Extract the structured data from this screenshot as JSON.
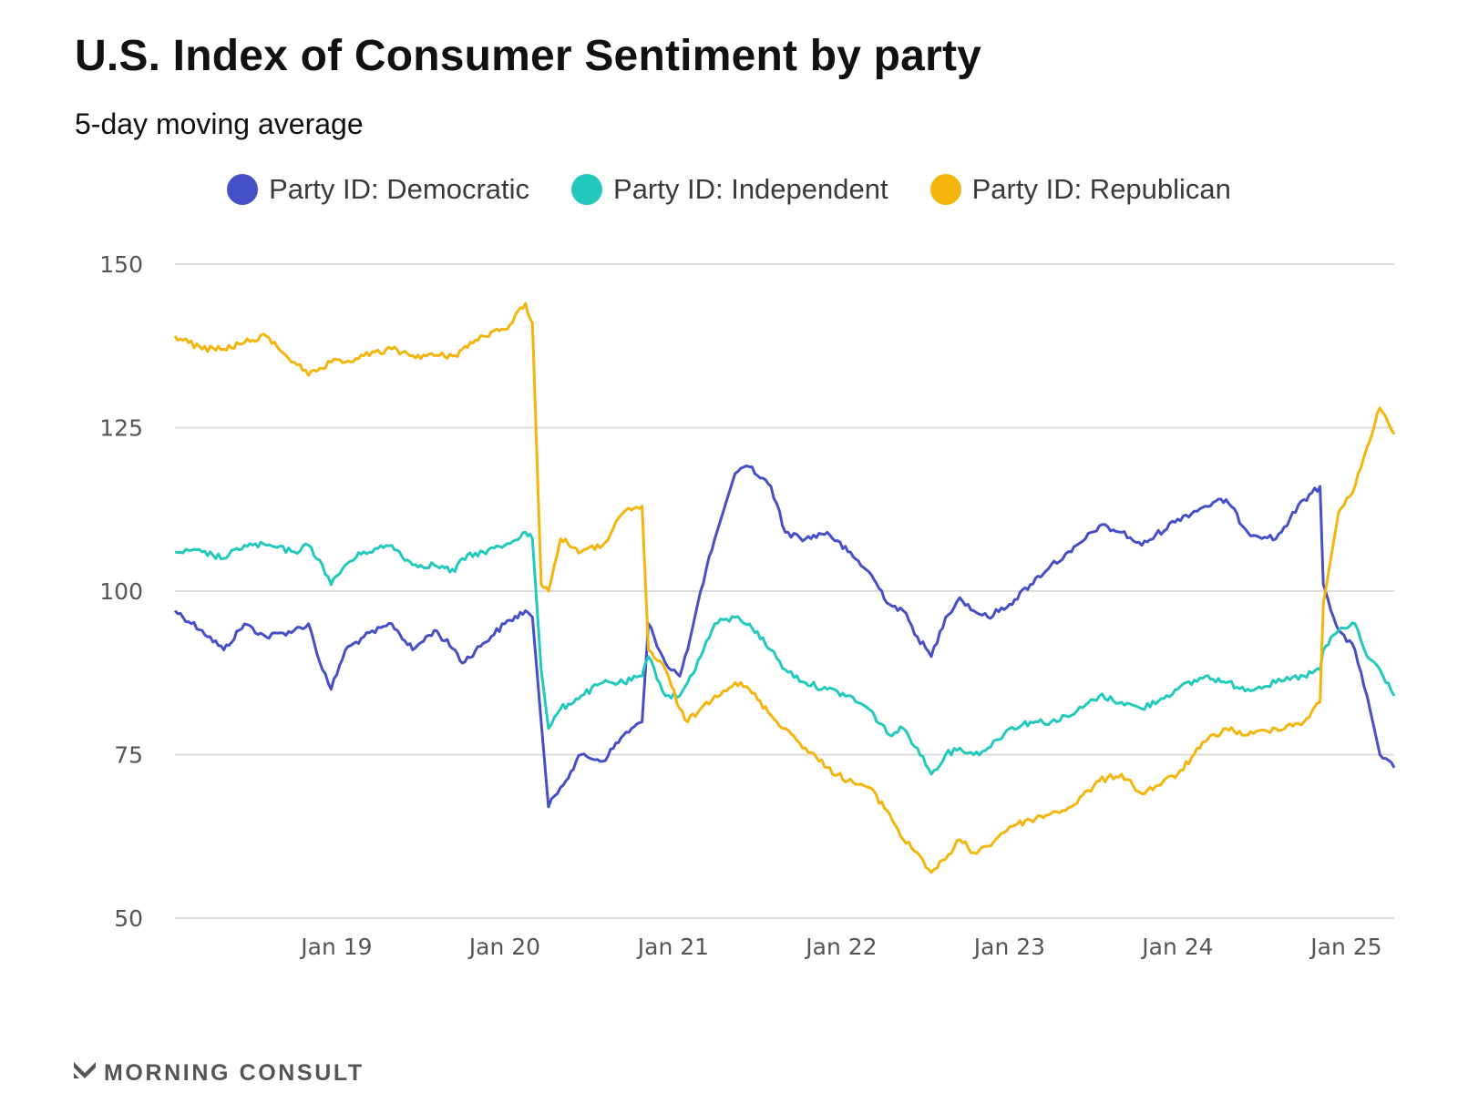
{
  "chart_data": {
    "type": "line",
    "title": "U.S. Index of Consumer Sentiment by party",
    "subtitle": "5-day moving average",
    "ylim": [
      50,
      150
    ],
    "yticks": [
      50,
      75,
      100,
      125,
      150
    ],
    "xlim": [
      "2018-01-15",
      "2025-04-15"
    ],
    "xticks": [
      {
        "date": "2019-01-01",
        "label": "Jan 19"
      },
      {
        "date": "2020-01-01",
        "label": "Jan 20"
      },
      {
        "date": "2021-01-01",
        "label": "Jan 21"
      },
      {
        "date": "2022-01-01",
        "label": "Jan 22"
      },
      {
        "date": "2023-01-01",
        "label": "Jan 23"
      },
      {
        "date": "2024-01-01",
        "label": "Jan 24"
      },
      {
        "date": "2025-01-01",
        "label": "Jan 25"
      }
    ],
    "grid": true,
    "legend_position": "top-center",
    "series": [
      {
        "name": "Party ID: Democratic",
        "color": "#4650c6",
        "points": [
          [
            "2018-01-15",
            97
          ],
          [
            "2018-03-15",
            94
          ],
          [
            "2018-05-01",
            91
          ],
          [
            "2018-06-15",
            95
          ],
          [
            "2018-08-01",
            93
          ],
          [
            "2018-10-01",
            94
          ],
          [
            "2018-11-01",
            95
          ],
          [
            "2018-12-01",
            88
          ],
          [
            "2018-12-20",
            85
          ],
          [
            "2019-01-20",
            91
          ],
          [
            "2019-03-01",
            93
          ],
          [
            "2019-05-01",
            95
          ],
          [
            "2019-06-15",
            91
          ],
          [
            "2019-08-01",
            94
          ],
          [
            "2019-09-15",
            91
          ],
          [
            "2019-10-01",
            89
          ],
          [
            "2019-11-15",
            92
          ],
          [
            "2020-01-01",
            95
          ],
          [
            "2020-02-15",
            97
          ],
          [
            "2020-03-01",
            96
          ],
          [
            "2020-03-20",
            80
          ],
          [
            "2020-04-05",
            67
          ],
          [
            "2020-05-01",
            70
          ],
          [
            "2020-06-15",
            75
          ],
          [
            "2020-08-01",
            74
          ],
          [
            "2020-09-15",
            78
          ],
          [
            "2020-10-25",
            80
          ],
          [
            "2020-11-08",
            95
          ],
          [
            "2020-12-15",
            89
          ],
          [
            "2021-01-15",
            87
          ],
          [
            "2021-02-01",
            91
          ],
          [
            "2021-03-01",
            100
          ],
          [
            "2021-04-01",
            108
          ],
          [
            "2021-05-15",
            118
          ],
          [
            "2021-06-15",
            119
          ],
          [
            "2021-08-01",
            116
          ],
          [
            "2021-09-01",
            109
          ],
          [
            "2021-10-15",
            108
          ],
          [
            "2021-12-01",
            109
          ],
          [
            "2022-01-15",
            106
          ],
          [
            "2022-03-01",
            103
          ],
          [
            "2022-04-15",
            98
          ],
          [
            "2022-05-15",
            97
          ],
          [
            "2022-06-15",
            93
          ],
          [
            "2022-07-15",
            90
          ],
          [
            "2022-08-15",
            96
          ],
          [
            "2022-09-15",
            99
          ],
          [
            "2022-10-15",
            97
          ],
          [
            "2022-11-15",
            96
          ],
          [
            "2023-01-01",
            98
          ],
          [
            "2023-02-15",
            101
          ],
          [
            "2023-04-01",
            104
          ],
          [
            "2023-05-15",
            106
          ],
          [
            "2023-07-15",
            110
          ],
          [
            "2023-09-01",
            109
          ],
          [
            "2023-10-15",
            107
          ],
          [
            "2024-01-01",
            111
          ],
          [
            "2024-03-01",
            113
          ],
          [
            "2024-04-15",
            114
          ],
          [
            "2024-06-01",
            109
          ],
          [
            "2024-08-01",
            108
          ],
          [
            "2024-10-01",
            114
          ],
          [
            "2024-11-05",
            116
          ],
          [
            "2024-11-12",
            101
          ],
          [
            "2024-12-15",
            94
          ],
          [
            "2025-01-20",
            91
          ],
          [
            "2025-02-15",
            84
          ],
          [
            "2025-03-15",
            75
          ],
          [
            "2025-04-15",
            73
          ]
        ]
      },
      {
        "name": "Party ID: Independent",
        "color": "#22c9bc",
        "points": [
          [
            "2018-01-15",
            106
          ],
          [
            "2018-03-15",
            106
          ],
          [
            "2018-05-01",
            105
          ],
          [
            "2018-06-15",
            107
          ],
          [
            "2018-08-01",
            107
          ],
          [
            "2018-10-01",
            106
          ],
          [
            "2018-11-01",
            107
          ],
          [
            "2018-12-01",
            104
          ],
          [
            "2018-12-20",
            101
          ],
          [
            "2019-01-20",
            104
          ],
          [
            "2019-03-01",
            106
          ],
          [
            "2019-05-01",
            107
          ],
          [
            "2019-06-15",
            104
          ],
          [
            "2019-08-01",
            104
          ],
          [
            "2019-09-15",
            103
          ],
          [
            "2019-10-01",
            105
          ],
          [
            "2019-11-15",
            106
          ],
          [
            "2020-01-01",
            107
          ],
          [
            "2020-02-15",
            109
          ],
          [
            "2020-03-01",
            108
          ],
          [
            "2020-03-20",
            88
          ],
          [
            "2020-04-05",
            79
          ],
          [
            "2020-05-01",
            82
          ],
          [
            "2020-06-15",
            84
          ],
          [
            "2020-08-01",
            86
          ],
          [
            "2020-09-15",
            86
          ],
          [
            "2020-10-25",
            87
          ],
          [
            "2020-11-08",
            90
          ],
          [
            "2020-12-15",
            84
          ],
          [
            "2021-01-15",
            84
          ],
          [
            "2021-02-01",
            86
          ],
          [
            "2021-03-01",
            90
          ],
          [
            "2021-04-01",
            95
          ],
          [
            "2021-05-15",
            96
          ],
          [
            "2021-06-15",
            95
          ],
          [
            "2021-08-01",
            91
          ],
          [
            "2021-09-01",
            88
          ],
          [
            "2021-10-15",
            86
          ],
          [
            "2021-12-01",
            85
          ],
          [
            "2022-01-15",
            84
          ],
          [
            "2022-03-01",
            82
          ],
          [
            "2022-04-15",
            78
          ],
          [
            "2022-05-15",
            79
          ],
          [
            "2022-06-15",
            76
          ],
          [
            "2022-07-15",
            72
          ],
          [
            "2022-08-15",
            75
          ],
          [
            "2022-09-15",
            76
          ],
          [
            "2022-10-15",
            75
          ],
          [
            "2022-11-15",
            76
          ],
          [
            "2023-01-01",
            79
          ],
          [
            "2023-02-15",
            80
          ],
          [
            "2023-04-01",
            80
          ],
          [
            "2023-05-15",
            81
          ],
          [
            "2023-07-15",
            84
          ],
          [
            "2023-09-01",
            83
          ],
          [
            "2023-10-15",
            82
          ],
          [
            "2024-01-01",
            85
          ],
          [
            "2024-03-01",
            87
          ],
          [
            "2024-04-15",
            86
          ],
          [
            "2024-06-01",
            85
          ],
          [
            "2024-08-01",
            86
          ],
          [
            "2024-10-01",
            87
          ],
          [
            "2024-11-05",
            88
          ],
          [
            "2024-11-12",
            91
          ],
          [
            "2024-12-15",
            94
          ],
          [
            "2025-01-20",
            95
          ],
          [
            "2025-02-15",
            90
          ],
          [
            "2025-03-15",
            88
          ],
          [
            "2025-04-15",
            84
          ]
        ]
      },
      {
        "name": "Party ID: Republican",
        "color": "#f5b50f",
        "points": [
          [
            "2018-01-15",
            139
          ],
          [
            "2018-03-15",
            137
          ],
          [
            "2018-05-01",
            137
          ],
          [
            "2018-06-15",
            138
          ],
          [
            "2018-08-01",
            139
          ],
          [
            "2018-10-01",
            135
          ],
          [
            "2018-11-01",
            133
          ],
          [
            "2018-12-01",
            134
          ],
          [
            "2018-12-20",
            135
          ],
          [
            "2019-01-20",
            135
          ],
          [
            "2019-03-01",
            136
          ],
          [
            "2019-05-01",
            137
          ],
          [
            "2019-06-15",
            136
          ],
          [
            "2019-08-01",
            136
          ],
          [
            "2019-09-15",
            136
          ],
          [
            "2019-10-01",
            137
          ],
          [
            "2019-11-15",
            139
          ],
          [
            "2020-01-01",
            140
          ],
          [
            "2020-02-15",
            144
          ],
          [
            "2020-03-01",
            141
          ],
          [
            "2020-03-20",
            101
          ],
          [
            "2020-04-05",
            100
          ],
          [
            "2020-05-01",
            108
          ],
          [
            "2020-06-15",
            106
          ],
          [
            "2020-08-01",
            107
          ],
          [
            "2020-09-15",
            112
          ],
          [
            "2020-10-25",
            113
          ],
          [
            "2020-11-08",
            91
          ],
          [
            "2020-12-15",
            88
          ],
          [
            "2021-01-15",
            82
          ],
          [
            "2021-02-01",
            80
          ],
          [
            "2021-03-01",
            82
          ],
          [
            "2021-04-01",
            84
          ],
          [
            "2021-05-15",
            86
          ],
          [
            "2021-06-15",
            85
          ],
          [
            "2021-08-01",
            81
          ],
          [
            "2021-09-01",
            79
          ],
          [
            "2021-10-15",
            76
          ],
          [
            "2021-12-01",
            73
          ],
          [
            "2022-01-15",
            71
          ],
          [
            "2022-03-01",
            70
          ],
          [
            "2022-04-15",
            66
          ],
          [
            "2022-05-15",
            62
          ],
          [
            "2022-06-15",
            60
          ],
          [
            "2022-07-15",
            57
          ],
          [
            "2022-08-15",
            59
          ],
          [
            "2022-09-15",
            62
          ],
          [
            "2022-10-15",
            60
          ],
          [
            "2022-11-15",
            61
          ],
          [
            "2023-01-01",
            64
          ],
          [
            "2023-02-15",
            65
          ],
          [
            "2023-04-01",
            66
          ],
          [
            "2023-05-15",
            67
          ],
          [
            "2023-07-15",
            71
          ],
          [
            "2023-09-01",
            72
          ],
          [
            "2023-10-15",
            69
          ],
          [
            "2024-01-01",
            72
          ],
          [
            "2024-03-01",
            77
          ],
          [
            "2024-04-15",
            79
          ],
          [
            "2024-06-01",
            78
          ],
          [
            "2024-08-01",
            79
          ],
          [
            "2024-10-01",
            80
          ],
          [
            "2024-11-05",
            83
          ],
          [
            "2024-11-12",
            98
          ],
          [
            "2024-12-15",
            112
          ],
          [
            "2025-01-20",
            116
          ],
          [
            "2025-02-15",
            122
          ],
          [
            "2025-03-15",
            128
          ],
          [
            "2025-04-15",
            124
          ]
        ]
      }
    ]
  },
  "footer": {
    "brand": "MORNING CONSULT"
  }
}
